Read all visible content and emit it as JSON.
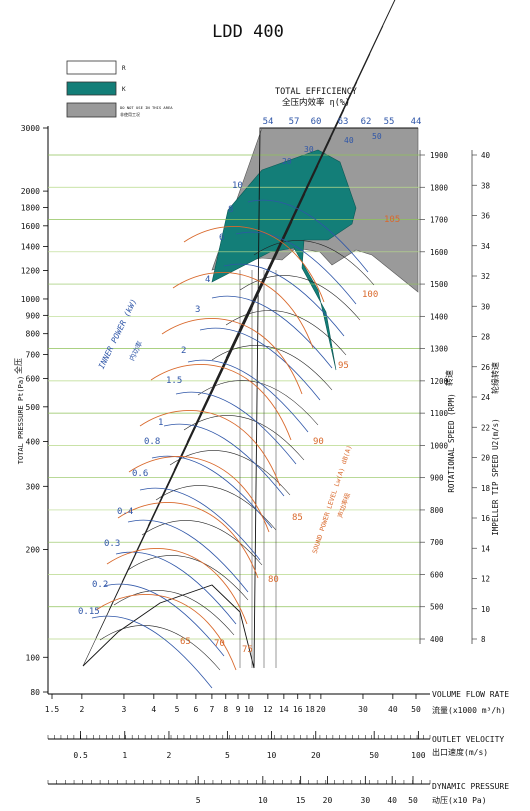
{
  "chart_data": {
    "type": "line",
    "title": "LDD 400",
    "legend": {
      "items": [
        {
          "swatch": "#ffffff",
          "label": "R"
        },
        {
          "swatch": "#137e78",
          "label": "K"
        },
        {
          "swatch": "#9a9a9a",
          "label": "DO NOT USE IN THIS AREA",
          "label_cn": "非使用工况"
        }
      ],
      "placement": "top-left"
    },
    "efficiency_label": {
      "en": "TOTAL EFFICIENCY",
      "cn": "全压内效率 η(%)"
    },
    "y_axis": {
      "label_en": "TOTAL PRESSURE Pt(Pa)",
      "label_cn": "全压",
      "scale": "log",
      "range": [
        80,
        3000
      ],
      "ticks": [
        3000,
        2000,
        1800,
        1600,
        1400,
        1200,
        1000,
        900,
        800,
        700,
        600,
        500,
        400,
        300,
        200,
        100,
        80
      ]
    },
    "x_axis": {
      "label_en": "VOLUME FLOW RATE",
      "label_cn": "流量(x1000 m³/h)",
      "scale": "log",
      "range": [
        1.5,
        50
      ],
      "ticks": [
        1.5,
        2,
        3,
        4,
        5,
        6,
        7,
        8,
        9,
        10,
        12,
        14,
        16,
        18,
        20,
        30,
        40,
        50
      ]
    },
    "outlet_velocity_axis": {
      "label_en": "OUTLET VELOCITY",
      "label_cn": "出口速度(m/s)",
      "ticks": [
        0.5,
        1,
        2,
        5,
        10,
        20,
        50,
        100
      ]
    },
    "dynamic_pressure_axis": {
      "label_en": "DYNAMIC PRESSURE",
      "label_cn": "动压(x10 Pa)",
      "ticks": [
        5,
        10,
        15,
        20,
        30,
        40,
        50
      ]
    },
    "rotational_speed_axis": {
      "label_en": "ROTATIONAL SPEED (RPM)",
      "label_cn": "转速",
      "ticks": [
        1900,
        1800,
        1700,
        1600,
        1500,
        1400,
        1300,
        1200,
        1100,
        1000,
        900,
        800,
        700,
        600,
        500,
        400
      ]
    },
    "tip_speed_axis": {
      "label_en": "IMPELLER TIP SPEED U2(m/s)",
      "label_cn": "轮缘转速",
      "ticks": [
        40,
        38,
        36,
        34,
        32,
        30,
        28,
        26,
        24,
        22,
        20,
        18,
        16,
        14,
        12,
        10,
        8
      ]
    },
    "inner_power": {
      "label_en": "INNER POWER (kW)",
      "label_cn": "内功率",
      "values": [
        "10",
        "8",
        "6",
        "4",
        "3",
        "2",
        "1.5",
        "1",
        "0.8",
        "0.6",
        "0.4",
        "0.3",
        "0.2",
        "0.15"
      ]
    },
    "efficiency_values": [
      "54",
      "57",
      "60",
      "63",
      "62",
      "55",
      "44"
    ],
    "efficiency_inner_values": [
      "20",
      "30",
      "40",
      "50"
    ],
    "sound_power": {
      "label_en": "SOUND POWER LEVEL Lw(A) dB(A)",
      "label_cn": "声功率级",
      "values": [
        "105",
        "100",
        "95",
        "90",
        "85",
        "80",
        "75",
        "70",
        "65"
      ]
    }
  }
}
